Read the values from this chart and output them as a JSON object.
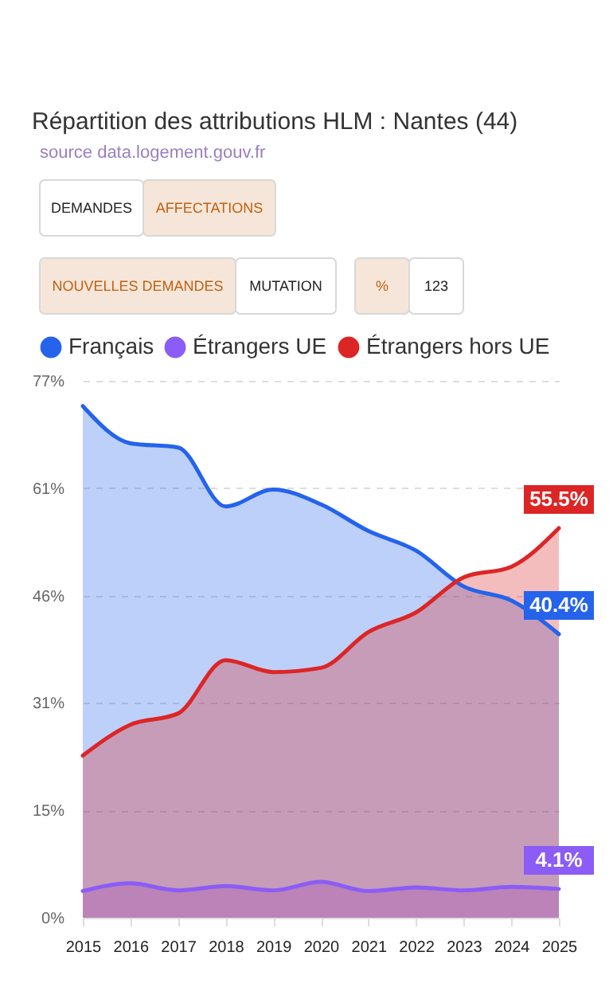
{
  "chart_data": {
    "type": "area",
    "title": "Répartition des attributions HLM : Nantes (44)",
    "annotations": [
      "source data.logement.gouv.fr",
      "DEMANDES",
      "AFFECTATIONS",
      "NOUVELLES DEMANDES",
      "MUTATION",
      "%",
      "123"
    ],
    "x": [
      2015,
      2016,
      2017,
      2018,
      2019,
      2020,
      2021,
      2022,
      2023,
      2024,
      2025
    ],
    "xlim": [
      2015,
      2025
    ],
    "xticks": [
      2015,
      2016,
      2017,
      2018,
      2019,
      2020,
      2021,
      2022,
      2023,
      2024,
      2025
    ],
    "ylim": [
      0,
      76.5
    ],
    "yticks": [
      {
        "value": 0,
        "label": "0%"
      },
      {
        "value": 15.3,
        "label": "15%"
      },
      {
        "value": 30.6,
        "label": "31%"
      },
      {
        "value": 45.9,
        "label": "46%"
      },
      {
        "value": 61.2,
        "label": "61%"
      },
      {
        "value": 76.5,
        "label": "77%"
      }
    ],
    "series": [
      {
        "name": "Français",
        "color": "#2563eb",
        "values": [
          72.9,
          67.6,
          67.0,
          58.6,
          61.0,
          58.9,
          55.1,
          52.3,
          47.2,
          45.2,
          40.4
        ],
        "value_labels": [
          null,
          null,
          null,
          null,
          null,
          null,
          null,
          null,
          null,
          null,
          "40.4%"
        ]
      },
      {
        "name": "Étrangers UE",
        "color": "#8b5cf6",
        "values": [
          3.8,
          4.9,
          3.9,
          4.5,
          3.9,
          5.1,
          3.8,
          4.3,
          3.9,
          4.4,
          4.1
        ],
        "value_labels": [
          null,
          null,
          null,
          null,
          null,
          null,
          null,
          null,
          null,
          null,
          "4.1%"
        ]
      },
      {
        "name": "Étrangers hors UE",
        "color": "#dc2626",
        "values": [
          23.1,
          27.5,
          29.1,
          36.7,
          35.0,
          35.6,
          40.7,
          43.5,
          48.5,
          50.0,
          55.5
        ],
        "value_labels": [
          null,
          null,
          null,
          null,
          null,
          null,
          null,
          null,
          null,
          null,
          "55.5%"
        ]
      }
    ],
    "grid": "y",
    "legend": "top left"
  }
}
